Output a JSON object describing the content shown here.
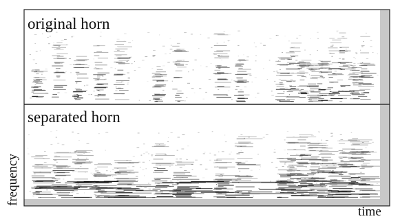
{
  "panels": [
    {
      "label": "original horn"
    },
    {
      "label": "separated horn"
    }
  ],
  "axes": {
    "y_label": "frequency",
    "x_label": "time"
  }
}
